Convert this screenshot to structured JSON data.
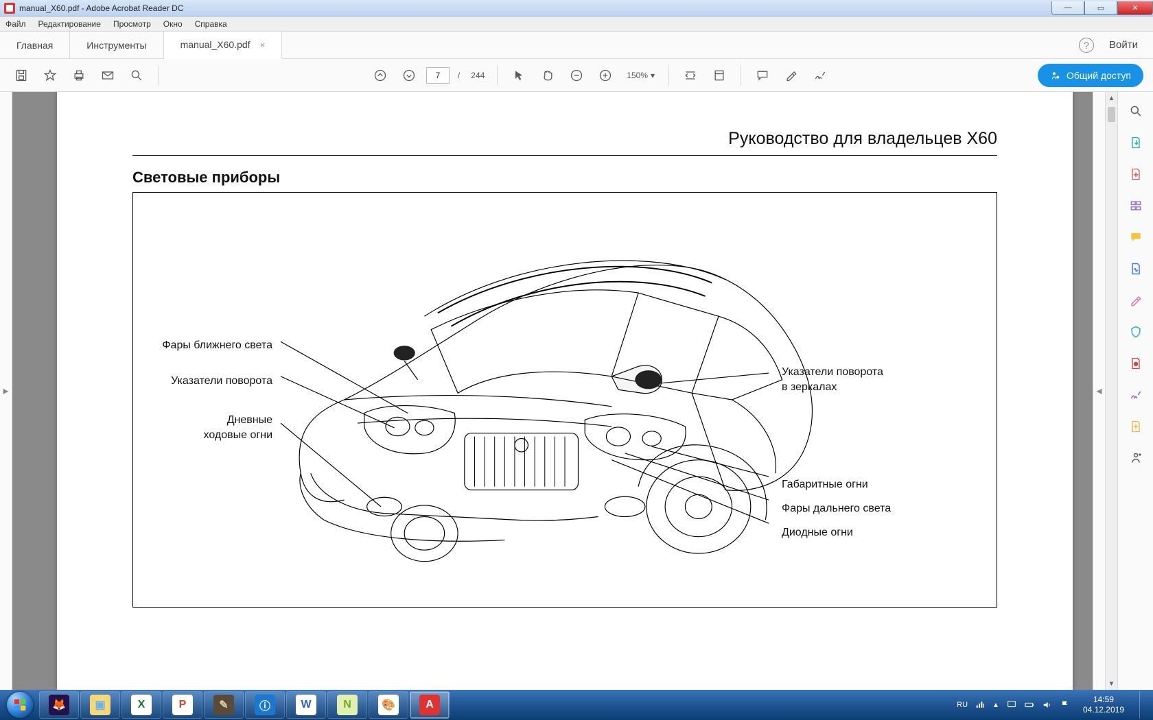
{
  "window": {
    "title": "manual_X60.pdf - Adobe Acrobat Reader DC",
    "btn_min": "—",
    "btn_max": "▭",
    "btn_close": "✕"
  },
  "menubar": [
    "Файл",
    "Редактирование",
    "Просмотр",
    "Окно",
    "Справка"
  ],
  "tabs": {
    "home": "Главная",
    "tools": "Инструменты",
    "doc": "manual_X60.pdf",
    "doc_close": "×",
    "help": "?",
    "signin": "Войти"
  },
  "toolbar": {
    "page_current": "7",
    "page_sep": "/",
    "page_total": "244",
    "zoom": "150%",
    "zoom_caret": "▾",
    "share_label": "Общий доступ"
  },
  "document": {
    "header": "Руководство для владельцев X60",
    "section": "Световые приборы",
    "labels": {
      "l1": "Фары ближнего света",
      "l2": "Указатели поворота",
      "l3a": "Дневные",
      "l3b": "ходовые огни",
      "r1a": "Указатели поворота",
      "r1b": "в зеркалах",
      "r2": "Габаритные огни",
      "r3": "Фары дальнего света",
      "r4": "Диодные огни"
    }
  },
  "sidepanel_colors": {
    "search": "#5b5b5b",
    "export": "#18b49a",
    "createpdf": "#e4575b",
    "organize": "#9a6fe0",
    "comment": "#f4c43a",
    "fill": "#3d7af0",
    "edit": "#e86db0",
    "protect": "#36a6e6",
    "optimize": "#d4434b",
    "sign": "#8f5fe0",
    "stamp": "#f0b23c",
    "more": "#5b5b5b"
  },
  "taskbar": {
    "lang": "RU",
    "time": "14:59",
    "date": "04.12.2019",
    "icons": [
      {
        "name": "firefox",
        "bg": "#23114a",
        "fg": "#ff9e2c"
      },
      {
        "name": "explorer",
        "bg": "#f5d87a",
        "fg": "#68b0e8"
      },
      {
        "name": "excel",
        "bg": "#ffffff",
        "fg": "#1f7246"
      },
      {
        "name": "powerpoint",
        "bg": "#ffffff",
        "fg": "#d04525"
      },
      {
        "name": "gimp",
        "bg": "#5a4a3a",
        "fg": "#e0cda5"
      },
      {
        "name": "app-i",
        "bg": "#1a78d0",
        "fg": "#ffffff"
      },
      {
        "name": "word",
        "bg": "#ffffff",
        "fg": "#2a5fb0"
      },
      {
        "name": "notepadpp",
        "bg": "#dff0b0",
        "fg": "#7aa52a"
      },
      {
        "name": "paint",
        "bg": "#ffffff",
        "fg": "#e08a2a"
      },
      {
        "name": "acrobat",
        "bg": "#d33",
        "fg": "#ffffff"
      }
    ]
  },
  "colors": {
    "share_blue": "#1892e7",
    "gray_icon": "#5b5b5b",
    "page_gray": "#8a8a8a"
  }
}
